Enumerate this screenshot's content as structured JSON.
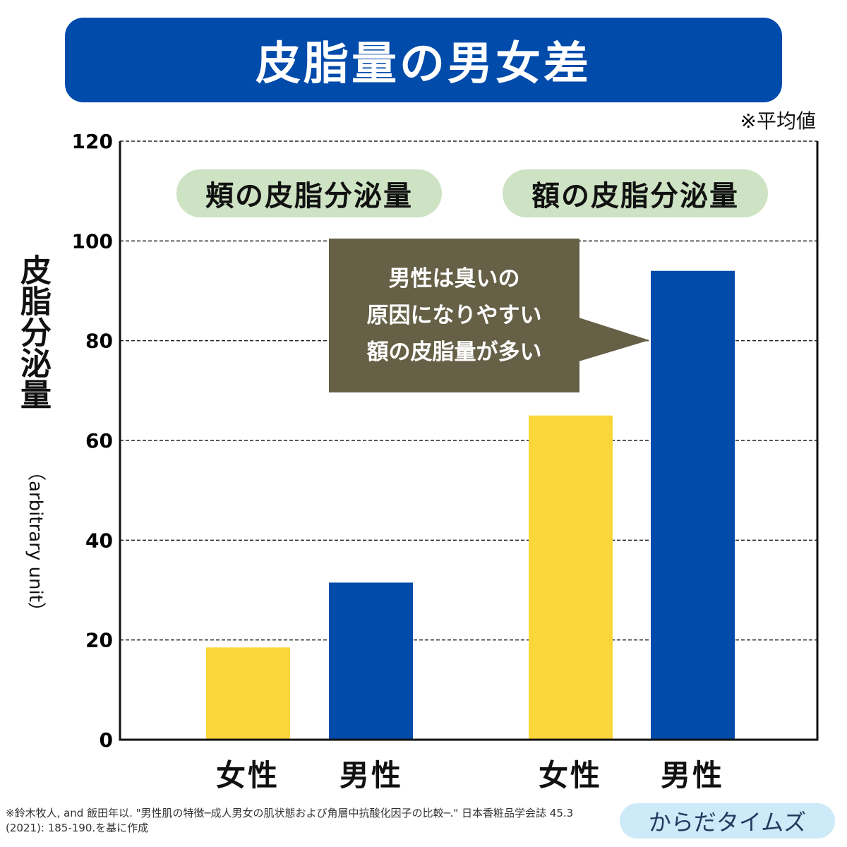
{
  "title": "皮脂量の男女差",
  "note": "※平均値",
  "chart_data": {
    "type": "bar",
    "title": "皮脂量の男女差",
    "ylabel": "皮脂分泌量",
    "yunit": "（arbitrary unit）",
    "ylim": [
      0,
      120
    ],
    "yticks": [
      0,
      20,
      40,
      60,
      80,
      100,
      120
    ],
    "grid": true,
    "groups": [
      {
        "name": "頬の皮脂分泌量",
        "categories": [
          "女性",
          "男性"
        ],
        "values": [
          18.5,
          31.5
        ]
      },
      {
        "name": "額の皮脂分泌量",
        "categories": [
          "女性",
          "男性"
        ],
        "values": [
          65,
          94
        ]
      }
    ],
    "colors": {
      "女性": "#fbd63b",
      "男性": "#014bab"
    }
  },
  "callout": [
    "男性は臭いの",
    "原因になりやすい",
    "額の皮脂量が多い"
  ],
  "footnote": "※鈴木牧人, and 飯田年以. \"男性肌の特徴─成人男女の肌状態および角層中抗酸化因子の比較─.\" 日本香粧品学会誌 45.3 (2021): 185-190.を基に作成",
  "brand": "からだタイムズ"
}
